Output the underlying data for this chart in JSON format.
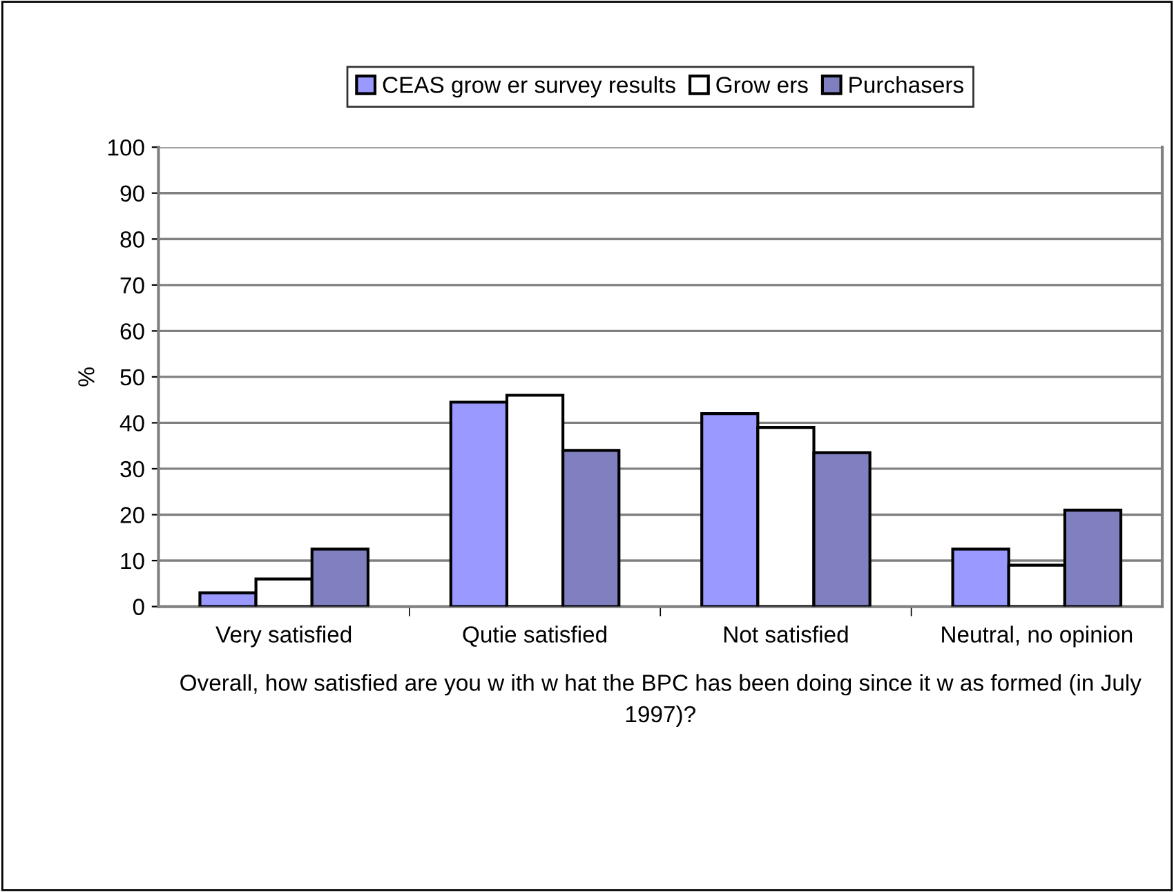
{
  "chart_data": {
    "type": "bar",
    "categories": [
      "Very satisfied",
      "Qutie satisfied",
      "Not satisfied",
      "Neutral, no opinion"
    ],
    "series": [
      {
        "name": "CEAS grow er survey results",
        "color": "#9999ff",
        "values": [
          3,
          44.5,
          42,
          12.5
        ]
      },
      {
        "name": "Grow ers",
        "color": "#ffffff",
        "values": [
          6,
          46,
          39,
          9
        ]
      },
      {
        "name": "Purchasers",
        "color": "#8080c0",
        "values": [
          12.5,
          34,
          33.5,
          21
        ]
      }
    ],
    "ylabel": "%",
    "xlabel": "Overall, how satisfied are you w ith w hat the BPC has been doing since it w as formed (in July 1997)?",
    "ylim": [
      0,
      100
    ],
    "yticks": [
      0,
      10,
      20,
      30,
      40,
      50,
      60,
      70,
      80,
      90,
      100
    ],
    "grid": "y",
    "legend": "top"
  }
}
